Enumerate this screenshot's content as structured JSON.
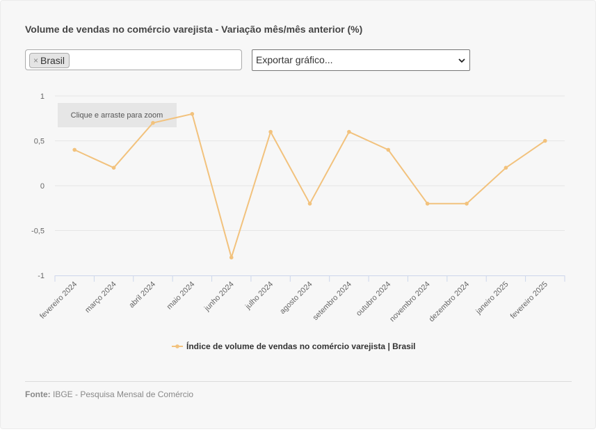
{
  "title": "Volume de vendas no comércio varejista - Variação mês/mês anterior (%)",
  "filter": {
    "chip_label": "Brasil",
    "chip_remove": "×"
  },
  "export": {
    "label": "Exportar gráfico..."
  },
  "zoom_hint": "Clique e arraste para zoom",
  "chart_data": {
    "type": "line",
    "categories": [
      "fevereiro 2024",
      "março 2024",
      "abril 2024",
      "maio 2024",
      "junho 2024",
      "julho 2024",
      "agosto 2024",
      "setembro 2024",
      "outubro 2024",
      "novembro 2024",
      "dezembro 2024",
      "janeiro 2025",
      "fevereiro 2025"
    ],
    "series": [
      {
        "name": "Índice de volume de vendas no comércio varejista | Brasil",
        "values": [
          0.4,
          0.2,
          0.7,
          0.8,
          -0.8,
          0.6,
          -0.2,
          0.6,
          0.4,
          -0.2,
          -0.2,
          0.2,
          0.5
        ]
      }
    ],
    "ylim": [
      -1,
      1
    ],
    "yticks": [
      1,
      0.5,
      0,
      -0.5,
      -1
    ],
    "ytick_labels": [
      "1",
      "0,5",
      "0",
      "-0,5",
      "-1"
    ],
    "grid": true,
    "legend": "bottom-center",
    "line_color": "#f2c27d"
  },
  "source": {
    "label": "Fonte:",
    "text": "IBGE - Pesquisa Mensal de Comércio"
  }
}
